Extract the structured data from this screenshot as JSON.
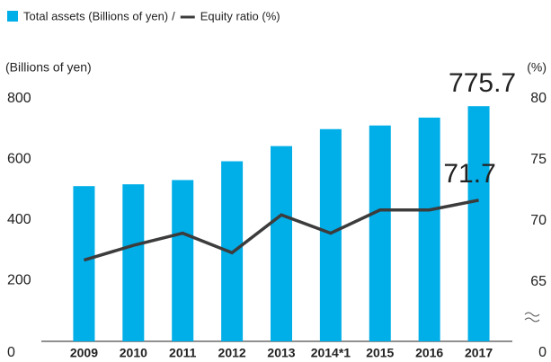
{
  "chart_data": {
    "type": "bar_line",
    "categories": [
      "2009",
      "2010",
      "2011",
      "2012",
      "2013",
      "2014*1",
      "2015",
      "2016",
      "2017"
    ],
    "series": [
      {
        "name": "Total assets (Billions of yen)",
        "color": "#00aee8",
        "type": "bar",
        "values": [
          512,
          518,
          532,
          594,
          644,
          700,
          712,
          738,
          775.7
        ]
      },
      {
        "name": "Equity ratio (%)",
        "color": "#3c3c3c",
        "type": "line",
        "axis": "y2",
        "values": [
          66.8,
          68.0,
          69.0,
          67.4,
          70.5,
          69.0,
          70.9,
          70.9,
          71.7
        ]
      }
    ],
    "legend_separator": "/",
    "y_label": "(Billions of yen)",
    "y2_label": "(%)",
    "ylim": [
      0,
      800
    ],
    "yticks": [
      0,
      200,
      400,
      600,
      800
    ],
    "y2lim": [
      60,
      80
    ],
    "y2ticks": [
      0,
      65,
      70,
      75,
      80
    ],
    "y2_break": true
  }
}
